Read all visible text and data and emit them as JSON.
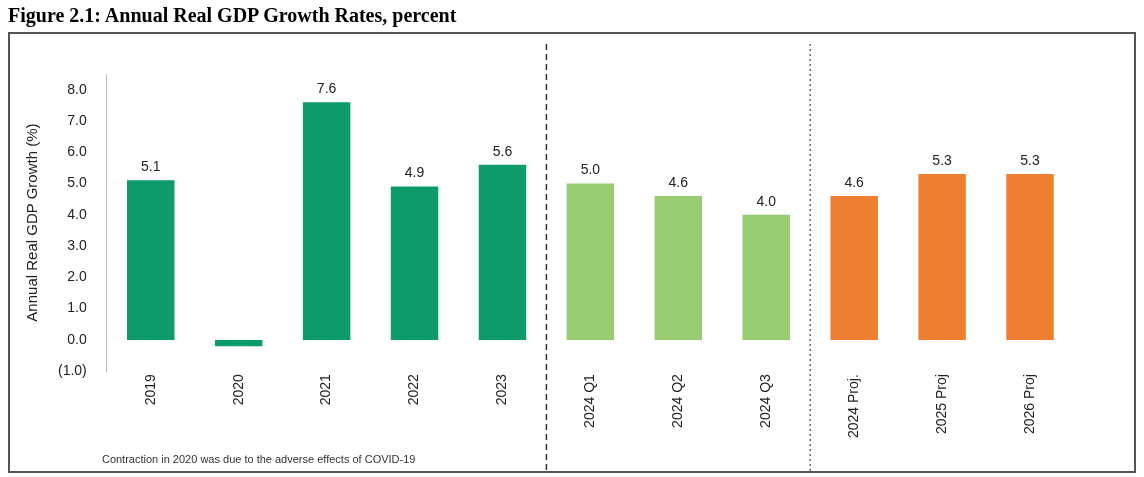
{
  "chart_data": {
    "type": "bar",
    "title": "Figure 2.1: Annual Real GDP Growth Rates, percent",
    "ylabel": "Annual Real GDP Growth (%)",
    "categories": [
      "2019",
      "2020",
      "2021",
      "2022",
      "2023",
      "2024 Q1",
      "2024 Q2",
      "2024 Q3",
      "2024 Proj.",
      "2025 Proj",
      "2026 Proj"
    ],
    "values": [
      5.1,
      -0.2,
      7.6,
      4.9,
      5.6,
      5.0,
      4.6,
      4.0,
      4.6,
      5.3,
      5.3
    ],
    "colors": [
      "#0e9b6c",
      "#0e9b6c",
      "#0e9b6c",
      "#0e9b6c",
      "#0e9b6c",
      "#98cc72",
      "#98cc72",
      "#98cc72",
      "#ee7f30",
      "#ee7f30",
      "#ee7f30"
    ],
    "value_labels": [
      "5.1",
      null,
      "7.6",
      "4.9",
      "5.6",
      "5.0",
      "4.6",
      "4.0",
      "4.6",
      "5.3",
      "5.3"
    ],
    "ylim": [
      -1,
      8.5
    ],
    "yticks": [
      {
        "value": -1,
        "label": "(1.0)"
      },
      {
        "value": 0,
        "label": "0.0"
      },
      {
        "value": 1,
        "label": "1.0"
      },
      {
        "value": 2,
        "label": "2.0"
      },
      {
        "value": 3,
        "label": "3.0"
      },
      {
        "value": 4,
        "label": "4.0"
      },
      {
        "value": 5,
        "label": "5.0"
      },
      {
        "value": 6,
        "label": "6.0"
      },
      {
        "value": 7,
        "label": "7.0"
      },
      {
        "value": 8,
        "label": "8.0"
      }
    ],
    "ref_lines": [
      {
        "axis": "x",
        "value": "2024 Q1",
        "line_style": "dashed",
        "color": "#333333"
      },
      {
        "axis": "x",
        "value": "2024 Proj.",
        "line_style": "dotted",
        "color": "#666666"
      }
    ],
    "annotations": [
      "Contraction in 2020 was due to the adverse effects of COVID-19"
    ],
    "grid": false,
    "legend": false
  }
}
